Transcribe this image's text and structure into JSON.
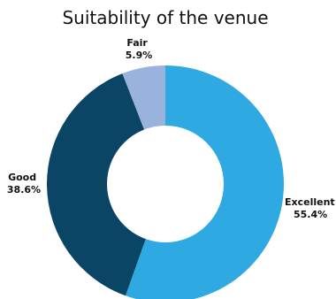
{
  "chart_data": {
    "type": "pie",
    "title": "Suitability of the venue",
    "donut": true,
    "slices": [
      {
        "label": "Excellent",
        "value": 55.4,
        "value_label": "55.4%",
        "color": "#2fa9e2"
      },
      {
        "label": "Good",
        "value": 38.6,
        "value_label": "38.6%",
        "color": "#0a4566"
      },
      {
        "label": "Fair",
        "value": 5.9,
        "value_label": "5.9%",
        "color": "#9ab3dc"
      }
    ]
  }
}
